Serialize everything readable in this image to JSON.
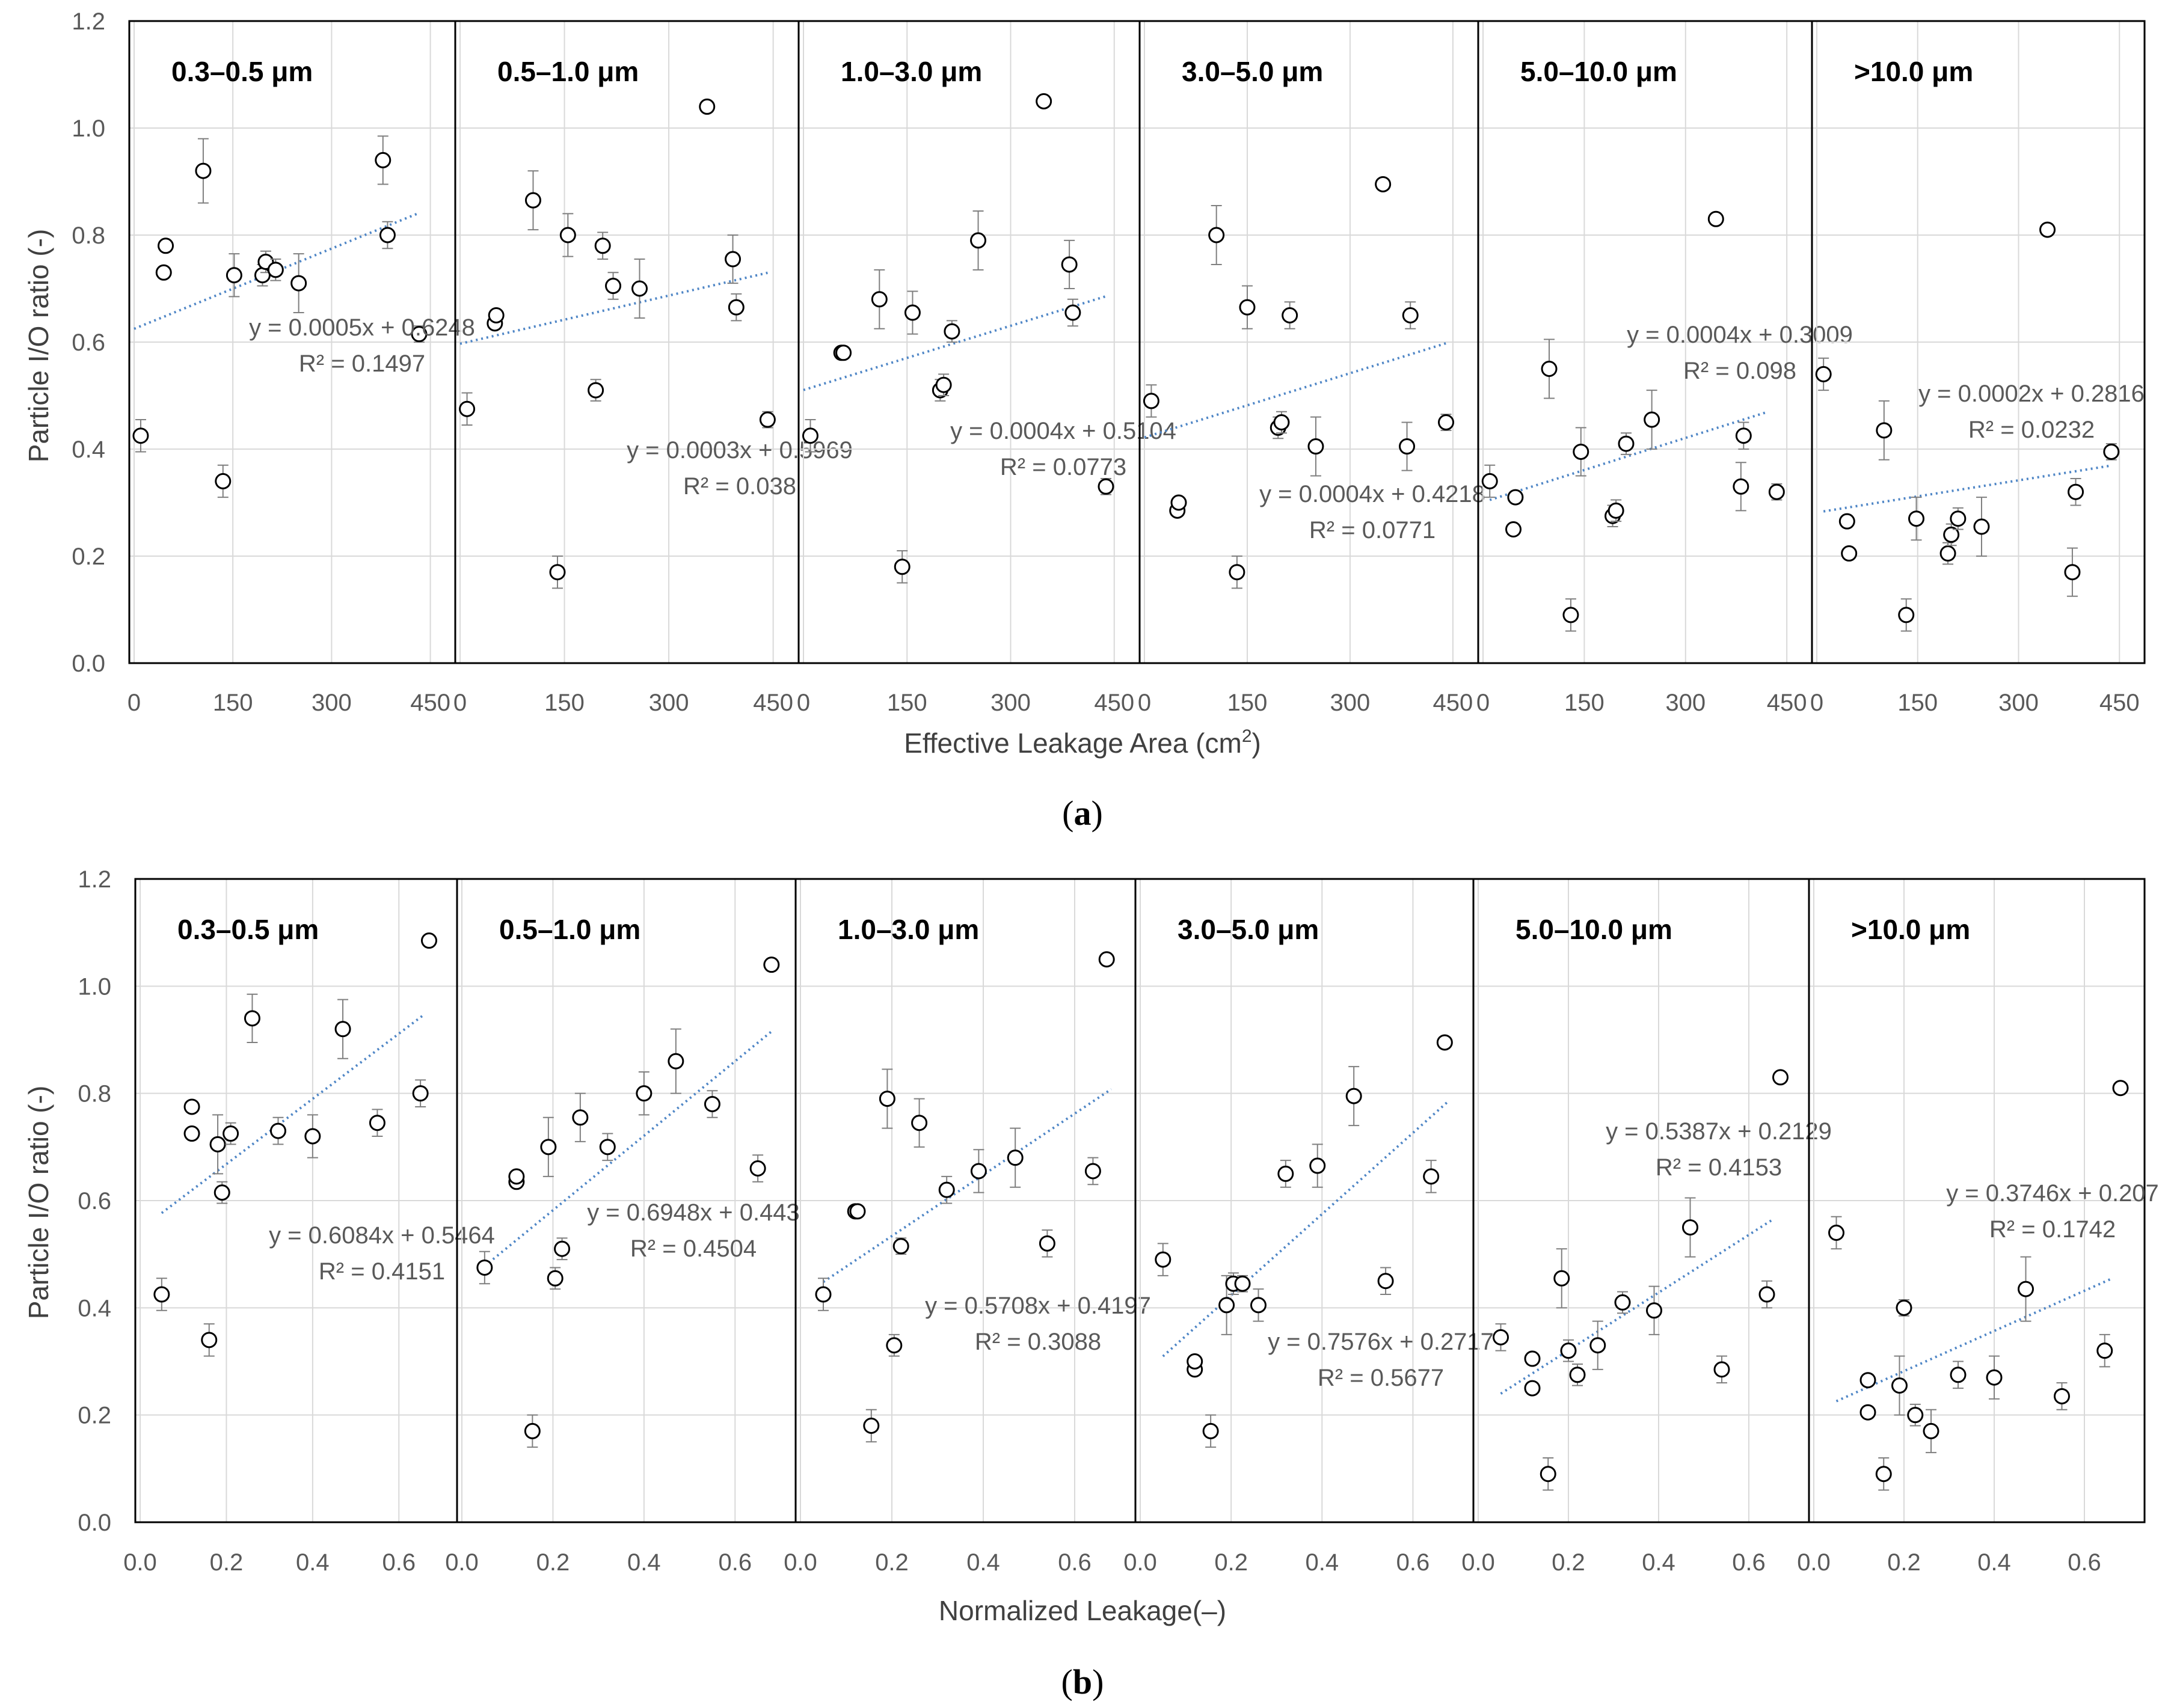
{
  "figure": {
    "captions": [
      "a",
      "b"
    ]
  },
  "chart_data": [
    {
      "type": "scatter",
      "caption": "a",
      "xlabel_main": "Effective Leakage Area (cm",
      "xlabel_sup": "2",
      "xlabel_end": ")",
      "ylabel": "Particle I/O ratio (-)",
      "ylim": [
        0,
        1.2
      ],
      "yticks": [
        "0.0",
        "0.2",
        "0.4",
        "0.6",
        "0.8",
        "1.0",
        "1.2"
      ],
      "xlim": [
        0,
        465
      ],
      "xticks": [
        0,
        150,
        300,
        450
      ],
      "grid": true,
      "panels": [
        {
          "title": "0.3–0.5 μm",
          "points": [
            [
              10,
              0.425,
              0.03
            ],
            [
              45,
              0.73,
              0
            ],
            [
              48,
              0.78,
              0
            ],
            [
              105,
              0.92,
              0.06
            ],
            [
              135,
              0.34,
              0.03
            ],
            [
              152,
              0.725,
              0.04
            ],
            [
              195,
              0.725,
              0.02
            ],
            [
              200,
              0.75,
              0.02
            ],
            [
              215,
              0.735,
              0.02
            ],
            [
              250,
              0.71,
              0.055
            ],
            [
              378,
              0.94,
              0.045
            ],
            [
              385,
              0.8,
              0.025
            ],
            [
              433,
              0.615,
              0.015
            ]
          ],
          "trend_x": [
            0,
            433
          ],
          "fit": {
            "slope": 0.0005,
            "intercept": 0.6248
          },
          "equation": "y = 0.0005x + 0.6248",
          "r2": "R² = 0.1497"
        },
        {
          "title": "0.5–1.0 μm",
          "points": [
            [
              10,
              0.475,
              0.03
            ],
            [
              50,
              0.635,
              0
            ],
            [
              52,
              0.65,
              0
            ],
            [
              105,
              0.865,
              0.055
            ],
            [
              140,
              0.17,
              0.03
            ],
            [
              155,
              0.8,
              0.04
            ],
            [
              195,
              0.51,
              0.02
            ],
            [
              205,
              0.78,
              0.025
            ],
            [
              220,
              0.705,
              0.025
            ],
            [
              258,
              0.7,
              0.055
            ],
            [
              355,
              1.04,
              0
            ],
            [
              392,
              0.755,
              0.045
            ],
            [
              397,
              0.665,
              0.025
            ],
            [
              442,
              0.455,
              0.015
            ]
          ],
          "trend_x": [
            0,
            442
          ],
          "fit": {
            "slope": 0.0003,
            "intercept": 0.5969
          },
          "equation": "y = 0.0003x + 0.5969",
          "r2": "R² = 0.038"
        },
        {
          "title": "1.0–3.0 μm",
          "points": [
            [
              10,
              0.425,
              0.03
            ],
            [
              55,
              0.58,
              0
            ],
            [
              58,
              0.58,
              0
            ],
            [
              110,
              0.68,
              0.055
            ],
            [
              143,
              0.18,
              0.03
            ],
            [
              158,
              0.655,
              0.04
            ],
            [
              198,
              0.51,
              0.02
            ],
            [
              203,
              0.52,
              0.02
            ],
            [
              215,
              0.62,
              0.02
            ],
            [
              253,
              0.79,
              0.055
            ],
            [
              348,
              1.05,
              0
            ],
            [
              385,
              0.745,
              0.045
            ],
            [
              390,
              0.655,
              0.025
            ],
            [
              438,
              0.33,
              0.015
            ]
          ],
          "trend_x": [
            0,
            438
          ],
          "fit": {
            "slope": 0.0004,
            "intercept": 0.5104
          },
          "equation": "y = 0.0004x + 0.5104",
          "r2": "R² = 0.0773"
        },
        {
          "title": "3.0–5.0 μm",
          "points": [
            [
              10,
              0.49,
              0.03
            ],
            [
              48,
              0.285,
              0
            ],
            [
              50,
              0.3,
              0
            ],
            [
              105,
              0.8,
              0.055
            ],
            [
              135,
              0.17,
              0.03
            ],
            [
              150,
              0.665,
              0.04
            ],
            [
              195,
              0.44,
              0.02
            ],
            [
              200,
              0.45,
              0.02
            ],
            [
              212,
              0.65,
              0.025
            ],
            [
              250,
              0.405,
              0.055
            ],
            [
              348,
              0.895,
              0
            ],
            [
              383,
              0.405,
              0.045
            ],
            [
              388,
              0.65,
              0.025
            ],
            [
              440,
              0.45,
              0.015
            ]
          ],
          "trend_x": [
            0,
            440
          ],
          "fit": {
            "slope": 0.0004,
            "intercept": 0.4218
          },
          "equation": "y = 0.0004x + 0.4218",
          "r2": "R² = 0.0771"
        },
        {
          "title": "5.0–10.0 μm",
          "points": [
            [
              10,
              0.34,
              0.03
            ],
            [
              45,
              0.25,
              0
            ],
            [
              48,
              0.31,
              0
            ],
            [
              98,
              0.55,
              0.055
            ],
            [
              130,
              0.09,
              0.03
            ],
            [
              145,
              0.395,
              0.045
            ],
            [
              192,
              0.275,
              0.02
            ],
            [
              197,
              0.285,
              0.02
            ],
            [
              212,
              0.41,
              0.02
            ],
            [
              250,
              0.455,
              0.055
            ],
            [
              345,
              0.83,
              0
            ],
            [
              382,
              0.33,
              0.045
            ],
            [
              386,
              0.425,
              0.025
            ],
            [
              435,
              0.32,
              0.015
            ]
          ],
          "trend_x": [
            10,
            420
          ],
          "fit": {
            "slope": 0.0004,
            "intercept": 0.3009
          },
          "equation": "y = 0.0004x + 0.3009",
          "r2": "R² = 0.098"
        },
        {
          "title": ">10.0 μm",
          "points": [
            [
              10,
              0.54,
              0.03
            ],
            [
              45,
              0.265,
              0
            ],
            [
              48,
              0.205,
              0
            ],
            [
              100,
              0.435,
              0.055
            ],
            [
              133,
              0.09,
              0.03
            ],
            [
              148,
              0.27,
              0.04
            ],
            [
              195,
              0.205,
              0.02
            ],
            [
              200,
              0.24,
              0.02
            ],
            [
              210,
              0.27,
              0.02
            ],
            [
              245,
              0.255,
              0.055
            ],
            [
              343,
              0.81,
              0
            ],
            [
              380,
              0.17,
              0.045
            ],
            [
              385,
              0.32,
              0.025
            ],
            [
              438,
              0.395,
              0.015
            ]
          ],
          "trend_x": [
            10,
            438
          ],
          "fit": {
            "slope": 0.0002,
            "intercept": 0.2816
          },
          "equation": "y = 0.0002x + 0.2816",
          "r2": "R² = 0.0232"
        }
      ]
    },
    {
      "type": "scatter",
      "caption": "b",
      "xlabel": "Normalized Leakage(–)",
      "ylabel": "Particle I/O ratio (-)",
      "ylim": [
        0,
        1.2
      ],
      "yticks": [
        "0.0",
        "0.2",
        "0.4",
        "0.6",
        "0.8",
        "1.0",
        "1.2"
      ],
      "xlim": [
        0,
        0.7
      ],
      "xticks": [
        "0.0",
        "0.2",
        "0.4",
        "0.6"
      ],
      "grid": true,
      "panels": [
        {
          "title": "0.3–0.5 μm",
          "points": [
            [
              0.05,
              0.425,
              0.03
            ],
            [
              0.12,
              0.775,
              0
            ],
            [
              0.12,
              0.725,
              0
            ],
            [
              0.16,
              0.34,
              0.03
            ],
            [
              0.18,
              0.705,
              0.055
            ],
            [
              0.19,
              0.615,
              0.02
            ],
            [
              0.21,
              0.725,
              0.02
            ],
            [
              0.26,
              0.94,
              0.045
            ],
            [
              0.32,
              0.73,
              0.025
            ],
            [
              0.4,
              0.72,
              0.04
            ],
            [
              0.47,
              0.92,
              0.055
            ],
            [
              0.55,
              0.745,
              0.025
            ],
            [
              0.65,
              0.8,
              0.025
            ],
            [
              0.67,
              1.085,
              0
            ]
          ],
          "trend_x": [
            0.05,
            0.66
          ],
          "fit": {
            "slope": 0.6084,
            "intercept": 0.5464
          },
          "equation": "y = 0.6084x + 0.5464",
          "r2": "R² = 0.4151"
        },
        {
          "title": "0.5–1.0 μm",
          "points": [
            [
              0.05,
              0.475,
              0.03
            ],
            [
              0.12,
              0.635,
              0
            ],
            [
              0.12,
              0.645,
              0
            ],
            [
              0.155,
              0.17,
              0.03
            ],
            [
              0.19,
              0.7,
              0.055
            ],
            [
              0.205,
              0.455,
              0.02
            ],
            [
              0.22,
              0.51,
              0.02
            ],
            [
              0.26,
              0.755,
              0.045
            ],
            [
              0.32,
              0.7,
              0.025
            ],
            [
              0.4,
              0.8,
              0.04
            ],
            [
              0.47,
              0.86,
              0.06
            ],
            [
              0.55,
              0.78,
              0.025
            ],
            [
              0.65,
              0.66,
              0.025
            ],
            [
              0.68,
              1.04,
              0
            ]
          ],
          "trend_x": [
            0.05,
            0.68
          ],
          "fit": {
            "slope": 0.6948,
            "intercept": 0.443
          },
          "equation": "y = 0.6948x + 0.443",
          "r2": "R² = 0.4504"
        },
        {
          "title": "1.0–3.0 μm",
          "points": [
            [
              0.05,
              0.425,
              0.03
            ],
            [
              0.12,
              0.58,
              0
            ],
            [
              0.125,
              0.58,
              0
            ],
            [
              0.155,
              0.18,
              0.03
            ],
            [
              0.19,
              0.79,
              0.055
            ],
            [
              0.205,
              0.33,
              0.02
            ],
            [
              0.22,
              0.515,
              0.015
            ],
            [
              0.26,
              0.745,
              0.045
            ],
            [
              0.32,
              0.62,
              0.025
            ],
            [
              0.39,
              0.655,
              0.04
            ],
            [
              0.47,
              0.68,
              0.055
            ],
            [
              0.54,
              0.52,
              0.025
            ],
            [
              0.64,
              0.655,
              0.025
            ],
            [
              0.67,
              1.05,
              0
            ]
          ],
          "trend_x": [
            0.05,
            0.68
          ],
          "fit": {
            "slope": 0.5708,
            "intercept": 0.4197
          },
          "equation": "y = 0.5708x + 0.4197",
          "r2": "R² = 0.3088"
        },
        {
          "title": "3.0–5.0 μm",
          "points": [
            [
              0.05,
              0.49,
              0.03
            ],
            [
              0.12,
              0.285,
              0
            ],
            [
              0.12,
              0.3,
              0
            ],
            [
              0.155,
              0.17,
              0.03
            ],
            [
              0.19,
              0.405,
              0.055
            ],
            [
              0.205,
              0.445,
              0.02
            ],
            [
              0.225,
              0.445,
              0.015
            ],
            [
              0.26,
              0.405,
              0.03
            ],
            [
              0.32,
              0.65,
              0.025
            ],
            [
              0.39,
              0.665,
              0.04
            ],
            [
              0.47,
              0.795,
              0.055
            ],
            [
              0.54,
              0.45,
              0.025
            ],
            [
              0.64,
              0.645,
              0.03
            ],
            [
              0.67,
              0.895,
              0
            ]
          ],
          "trend_x": [
            0.05,
            0.68
          ],
          "fit": {
            "slope": 0.7576,
            "intercept": 0.2717
          },
          "equation": "y = 0.7576x + 0.2717",
          "r2": "R² = 0.5677"
        },
        {
          "title": "5.0–10.0 μm",
          "points": [
            [
              0.05,
              0.345,
              0.025
            ],
            [
              0.12,
              0.25,
              0
            ],
            [
              0.12,
              0.305,
              0
            ],
            [
              0.155,
              0.09,
              0.03
            ],
            [
              0.185,
              0.455,
              0.055
            ],
            [
              0.2,
              0.32,
              0.02
            ],
            [
              0.22,
              0.275,
              0.02
            ],
            [
              0.265,
              0.33,
              0.045
            ],
            [
              0.32,
              0.41,
              0.02
            ],
            [
              0.39,
              0.395,
              0.045
            ],
            [
              0.47,
              0.55,
              0.055
            ],
            [
              0.54,
              0.285,
              0.025
            ],
            [
              0.64,
              0.425,
              0.025
            ],
            [
              0.67,
              0.83,
              0
            ]
          ],
          "trend_x": [
            0.05,
            0.65
          ],
          "fit": {
            "slope": 0.5387,
            "intercept": 0.2129
          },
          "equation": "y = 0.5387x + 0.2129",
          "r2": "R² = 0.4153"
        },
        {
          "title": ">10.0 μm",
          "points": [
            [
              0.05,
              0.54,
              0.03
            ],
            [
              0.12,
              0.265,
              0
            ],
            [
              0.12,
              0.205,
              0
            ],
            [
              0.155,
              0.09,
              0.03
            ],
            [
              0.19,
              0.255,
              0.055
            ],
            [
              0.2,
              0.4,
              0.015
            ],
            [
              0.225,
              0.2,
              0.02
            ],
            [
              0.26,
              0.17,
              0.04
            ],
            [
              0.32,
              0.275,
              0.025
            ],
            [
              0.4,
              0.27,
              0.04
            ],
            [
              0.47,
              0.435,
              0.06
            ],
            [
              0.55,
              0.235,
              0.025
            ],
            [
              0.645,
              0.32,
              0.03
            ],
            [
              0.68,
              0.81,
              0
            ]
          ],
          "trend_x": [
            0.05,
            0.66
          ],
          "fit": {
            "slope": 0.3746,
            "intercept": 0.207
          },
          "equation": "y = 0.3746x + 0.207",
          "r2": "R² = 0.1742"
        }
      ]
    }
  ]
}
